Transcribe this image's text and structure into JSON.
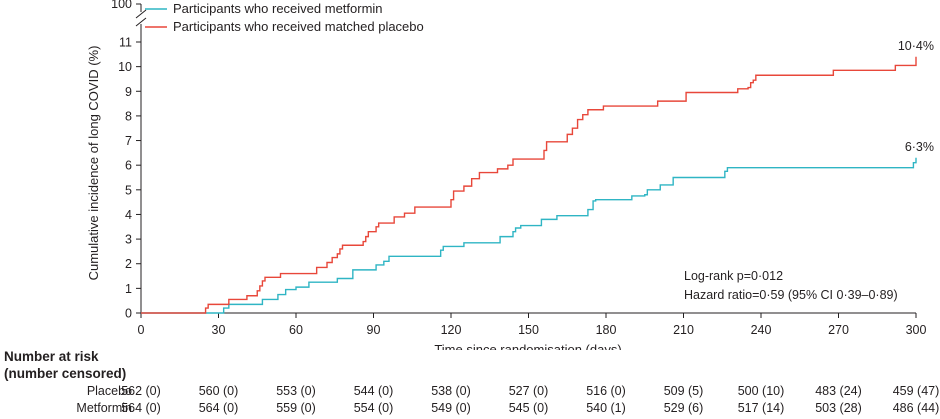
{
  "chart_data": {
    "type": "line",
    "subtype": "step",
    "xlabel": "Time since randomisation (days)",
    "ylabel": "Cumulative incidence of long COVID (%)",
    "xlim": [
      0,
      300
    ],
    "ylim": [
      0,
      11
    ],
    "x_ticks": [
      0,
      30,
      60,
      90,
      120,
      150,
      180,
      210,
      240,
      270,
      300
    ],
    "x_tick_labels": [
      "0",
      "30",
      "60",
      "90",
      "120",
      "150",
      "180",
      "210",
      "240",
      "270",
      "300"
    ],
    "y_ticks": [
      0,
      1,
      2,
      3,
      4,
      5,
      6,
      7,
      8,
      9,
      10,
      11
    ],
    "y_tick_labels": [
      "0",
      "1",
      "2",
      "3",
      "4",
      "5",
      "6",
      "7",
      "8",
      "9",
      "10",
      "11"
    ],
    "y_break_label": "100",
    "grid": false,
    "legend_position": "top-left",
    "series": [
      {
        "name": "Participants who received metformin",
        "color": "#2fb5c4",
        "end_label": "6·3%",
        "points": [
          [
            0,
            0
          ],
          [
            31,
            0
          ],
          [
            32,
            0.2
          ],
          [
            34,
            0.35
          ],
          [
            46,
            0.35
          ],
          [
            47,
            0.55
          ],
          [
            52,
            0.55
          ],
          [
            53,
            0.75
          ],
          [
            55,
            0.75
          ],
          [
            56,
            0.95
          ],
          [
            59,
            0.95
          ],
          [
            60,
            1.05
          ],
          [
            64,
            1.05
          ],
          [
            65,
            1.25
          ],
          [
            75,
            1.25
          ],
          [
            76,
            1.4
          ],
          [
            81,
            1.4
          ],
          [
            82,
            1.75
          ],
          [
            90,
            1.75
          ],
          [
            91,
            1.95
          ],
          [
            93,
            1.95
          ],
          [
            94,
            2.1
          ],
          [
            95,
            2.1
          ],
          [
            96,
            2.3
          ],
          [
            115,
            2.3
          ],
          [
            116,
            2.55
          ],
          [
            117,
            2.7
          ],
          [
            124,
            2.7
          ],
          [
            125,
            2.85
          ],
          [
            138,
            2.85
          ],
          [
            139,
            3.1
          ],
          [
            143,
            3.1
          ],
          [
            144,
            3.3
          ],
          [
            145,
            3.45
          ],
          [
            147,
            3.55
          ],
          [
            154,
            3.55
          ],
          [
            155,
            3.8
          ],
          [
            160,
            3.8
          ],
          [
            161,
            3.95
          ],
          [
            172,
            3.95
          ],
          [
            173,
            4.2
          ],
          [
            175,
            4.55
          ],
          [
            176,
            4.6
          ],
          [
            189,
            4.6
          ],
          [
            190,
            4.75
          ],
          [
            195,
            4.8
          ],
          [
            196,
            5.0
          ],
          [
            200,
            5.0
          ],
          [
            201,
            5.2
          ],
          [
            205,
            5.2
          ],
          [
            206,
            5.5
          ],
          [
            225,
            5.5
          ],
          [
            226,
            5.75
          ],
          [
            227,
            5.9
          ],
          [
            298,
            5.9
          ],
          [
            299,
            6.1
          ],
          [
            300,
            6.3
          ]
        ]
      },
      {
        "name": "Participants who received matched placebo",
        "color": "#e8473a",
        "end_label": "10·4%",
        "points": [
          [
            0,
            0
          ],
          [
            24,
            0
          ],
          [
            25,
            0.2
          ],
          [
            26,
            0.35
          ],
          [
            33,
            0.35
          ],
          [
            34,
            0.55
          ],
          [
            40,
            0.55
          ],
          [
            41,
            0.7
          ],
          [
            44,
            0.7
          ],
          [
            45,
            0.9
          ],
          [
            46,
            1.1
          ],
          [
            47,
            1.3
          ],
          [
            48,
            1.45
          ],
          [
            53,
            1.45
          ],
          [
            54,
            1.6
          ],
          [
            67,
            1.6
          ],
          [
            68,
            1.85
          ],
          [
            71,
            1.85
          ],
          [
            72,
            2.05
          ],
          [
            74,
            2.25
          ],
          [
            76,
            2.4
          ],
          [
            77,
            2.6
          ],
          [
            78,
            2.75
          ],
          [
            85,
            2.75
          ],
          [
            86,
            2.9
          ],
          [
            87,
            3.1
          ],
          [
            88,
            3.3
          ],
          [
            90,
            3.3
          ],
          [
            91,
            3.5
          ],
          [
            92,
            3.65
          ],
          [
            97,
            3.65
          ],
          [
            98,
            3.9
          ],
          [
            101,
            3.9
          ],
          [
            102,
            4.05
          ],
          [
            105,
            4.05
          ],
          [
            106,
            4.3
          ],
          [
            119,
            4.3
          ],
          [
            120,
            4.6
          ],
          [
            121,
            4.95
          ],
          [
            124,
            4.95
          ],
          [
            125,
            5.15
          ],
          [
            127,
            5.15
          ],
          [
            128,
            5.45
          ],
          [
            130,
            5.45
          ],
          [
            131,
            5.7
          ],
          [
            137,
            5.7
          ],
          [
            138,
            5.85
          ],
          [
            141,
            5.85
          ],
          [
            142,
            6.0
          ],
          [
            144,
            6.25
          ],
          [
            155,
            6.25
          ],
          [
            156,
            6.6
          ],
          [
            157,
            6.95
          ],
          [
            164,
            6.95
          ],
          [
            165,
            7.25
          ],
          [
            167,
            7.5
          ],
          [
            169,
            7.85
          ],
          [
            171,
            8.05
          ],
          [
            173,
            8.25
          ],
          [
            178,
            8.25
          ],
          [
            179,
            8.4
          ],
          [
            199,
            8.4
          ],
          [
            200,
            8.6
          ],
          [
            210,
            8.6
          ],
          [
            211,
            8.95
          ],
          [
            230,
            8.95
          ],
          [
            231,
            9.1
          ],
          [
            235,
            9.15
          ],
          [
            236,
            9.35
          ],
          [
            237,
            9.45
          ],
          [
            238,
            9.65
          ],
          [
            267,
            9.65
          ],
          [
            268,
            9.85
          ],
          [
            291,
            9.85
          ],
          [
            292,
            10.05
          ],
          [
            299,
            10.05
          ],
          [
            300,
            10.4
          ]
        ]
      }
    ],
    "annotations": {
      "logrank": "Log-rank p=0·012",
      "hazard": "Hazard ratio=0·59 (95% CI 0·39–0·89)"
    }
  },
  "risk_table": {
    "heading_line1": "Number at risk",
    "heading_line2": "(number censored)",
    "rows": [
      {
        "label": "Placebo",
        "values": [
          "562 (0)",
          "560 (0)",
          "553 (0)",
          "544 (0)",
          "538 (0)",
          "527 (0)",
          "516 (0)",
          "509 (5)",
          "500 (10)",
          "483 (24)",
          "459 (47)"
        ]
      },
      {
        "label": "Metformin",
        "values": [
          "564 (0)",
          "564 (0)",
          "559 (0)",
          "554 (0)",
          "549 (0)",
          "545 (0)",
          "540 (1)",
          "529 (6)",
          "517 (14)",
          "503 (28)",
          "486 (44)"
        ]
      }
    ]
  }
}
